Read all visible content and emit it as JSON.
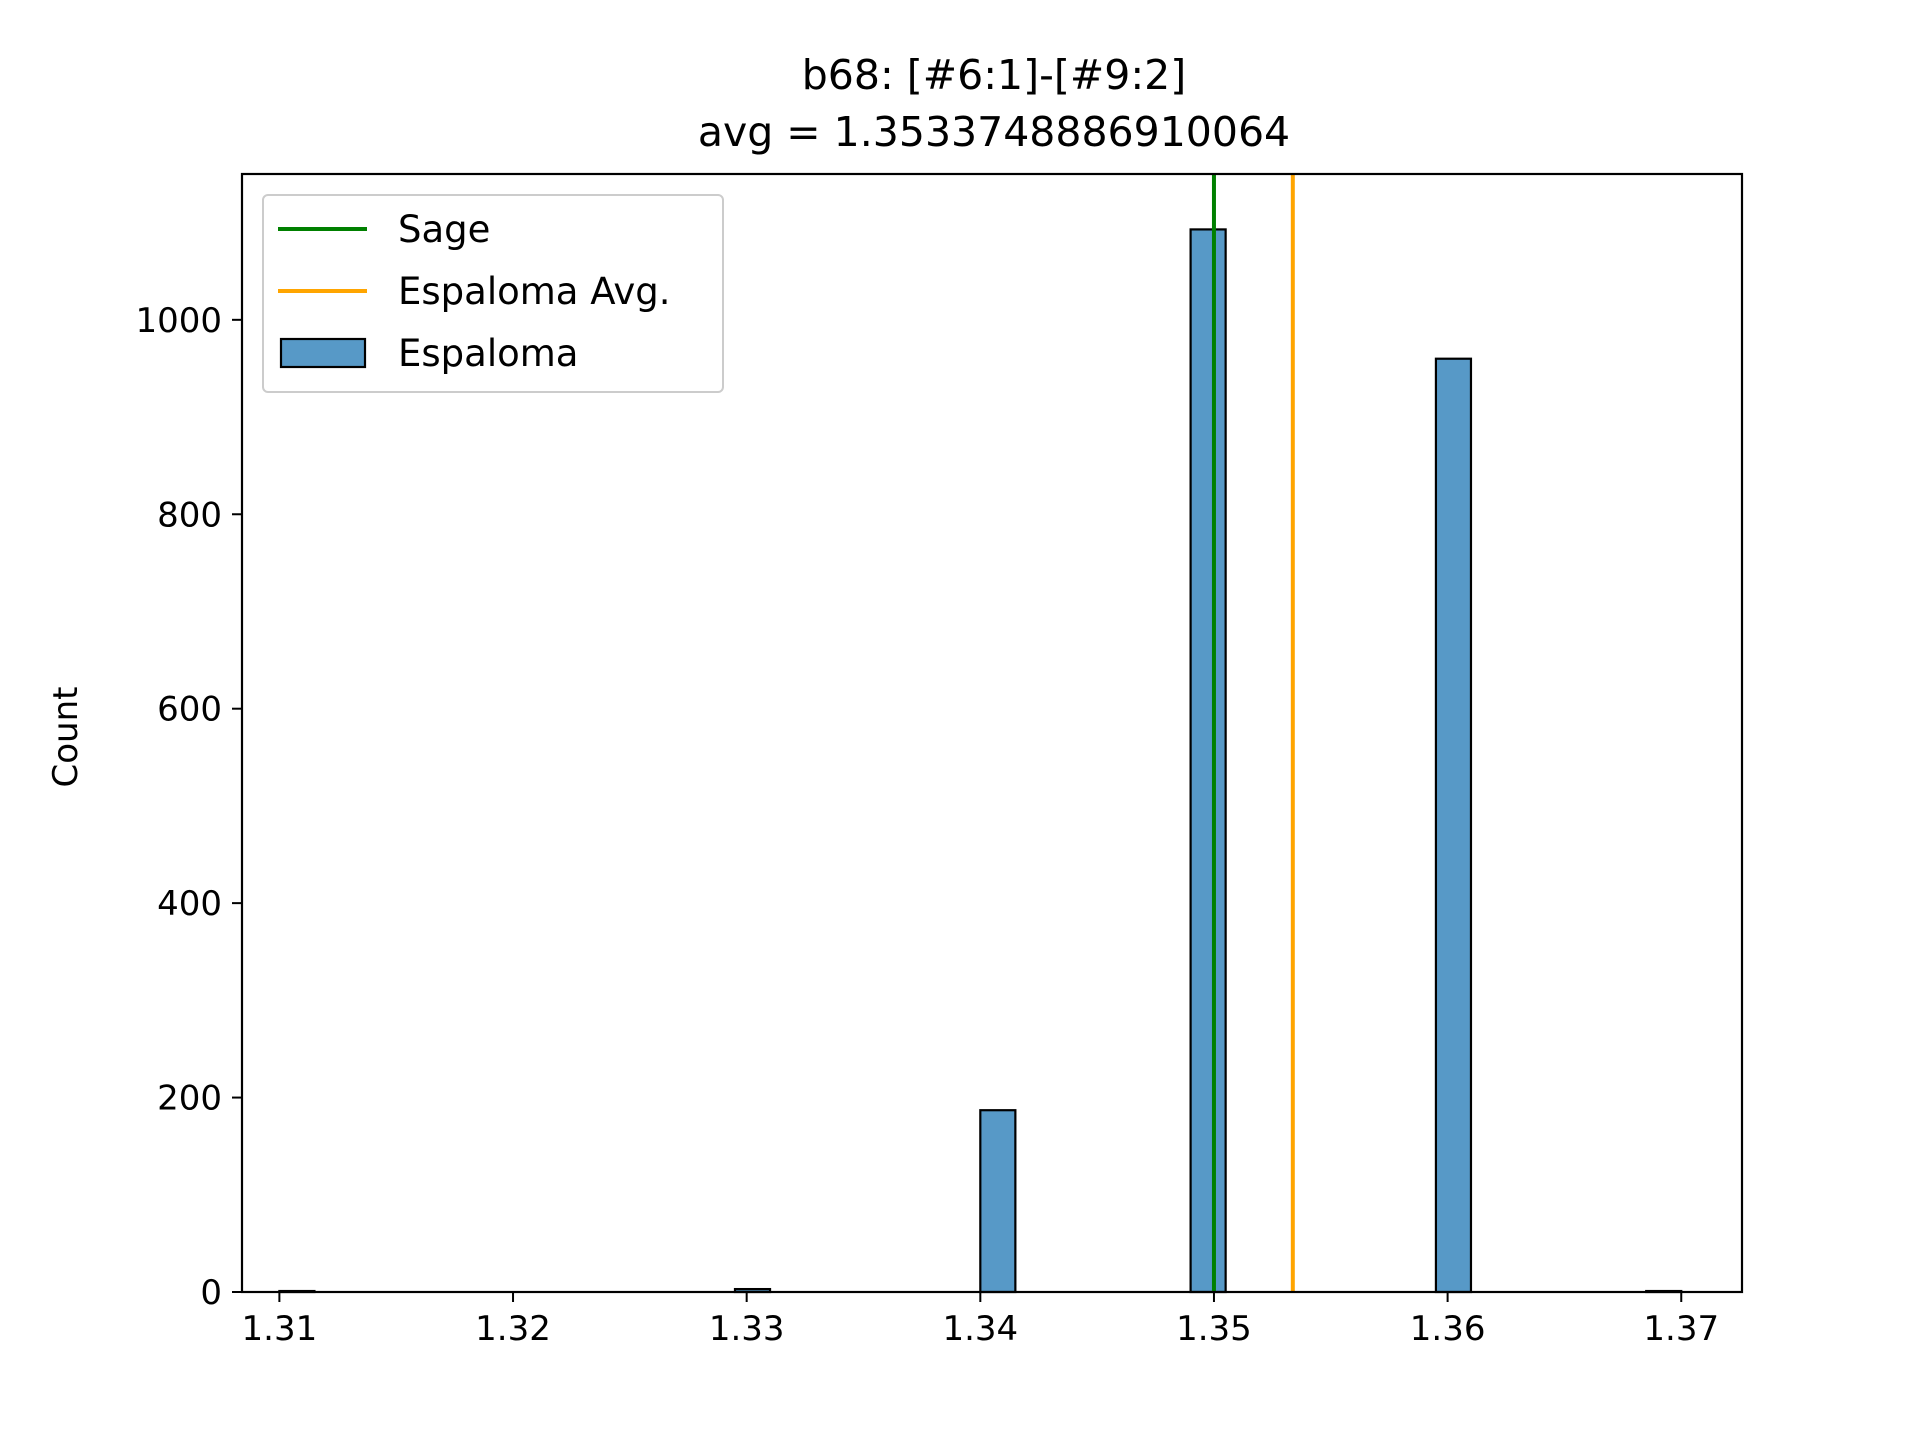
{
  "chart_data": {
    "type": "bar",
    "title_lines": [
      "b68: [#6:1]-[#9:2]",
      "avg = 1.3533748886910064"
    ],
    "xlabel": "",
    "ylabel": "Count",
    "xlim": [
      1.3084,
      1.3726
    ],
    "ylim": [
      0,
      1150
    ],
    "xticks": [
      1.31,
      1.32,
      1.33,
      1.34,
      1.35,
      1.36,
      1.37
    ],
    "xtick_labels": [
      "1.31",
      "1.32",
      "1.33",
      "1.34",
      "1.35",
      "1.36",
      "1.37"
    ],
    "yticks": [
      0,
      200,
      400,
      600,
      800,
      1000
    ],
    "ytick_labels": [
      "0",
      "200",
      "400",
      "600",
      "800",
      "1000"
    ],
    "grid": false,
    "legend_position": "upper-left",
    "bin_width": 0.0015,
    "bins": [
      {
        "x_start": 1.31,
        "count": 1
      },
      {
        "x_start": 1.3295,
        "count": 3
      },
      {
        "x_start": 1.34,
        "count": 187
      },
      {
        "x_start": 1.349,
        "count": 1093
      },
      {
        "x_start": 1.3595,
        "count": 960
      },
      {
        "x_start": 1.3685,
        "count": 1
      }
    ],
    "vlines": [
      {
        "name": "Sage",
        "x": 1.35,
        "color": "#008000"
      },
      {
        "name": "Espaloma Avg.",
        "x": 1.3533748886910064,
        "color": "#ffa500"
      }
    ],
    "series": [
      {
        "name": "Espaloma",
        "color": "#5799c7",
        "edge_color": "#000000"
      }
    ],
    "legend": [
      {
        "label": "Sage",
        "kind": "line",
        "color": "#008000"
      },
      {
        "label": "Espaloma Avg.",
        "kind": "line",
        "color": "#ffa500"
      },
      {
        "label": "Espaloma",
        "kind": "patch",
        "color": "#5799c7"
      }
    ]
  }
}
